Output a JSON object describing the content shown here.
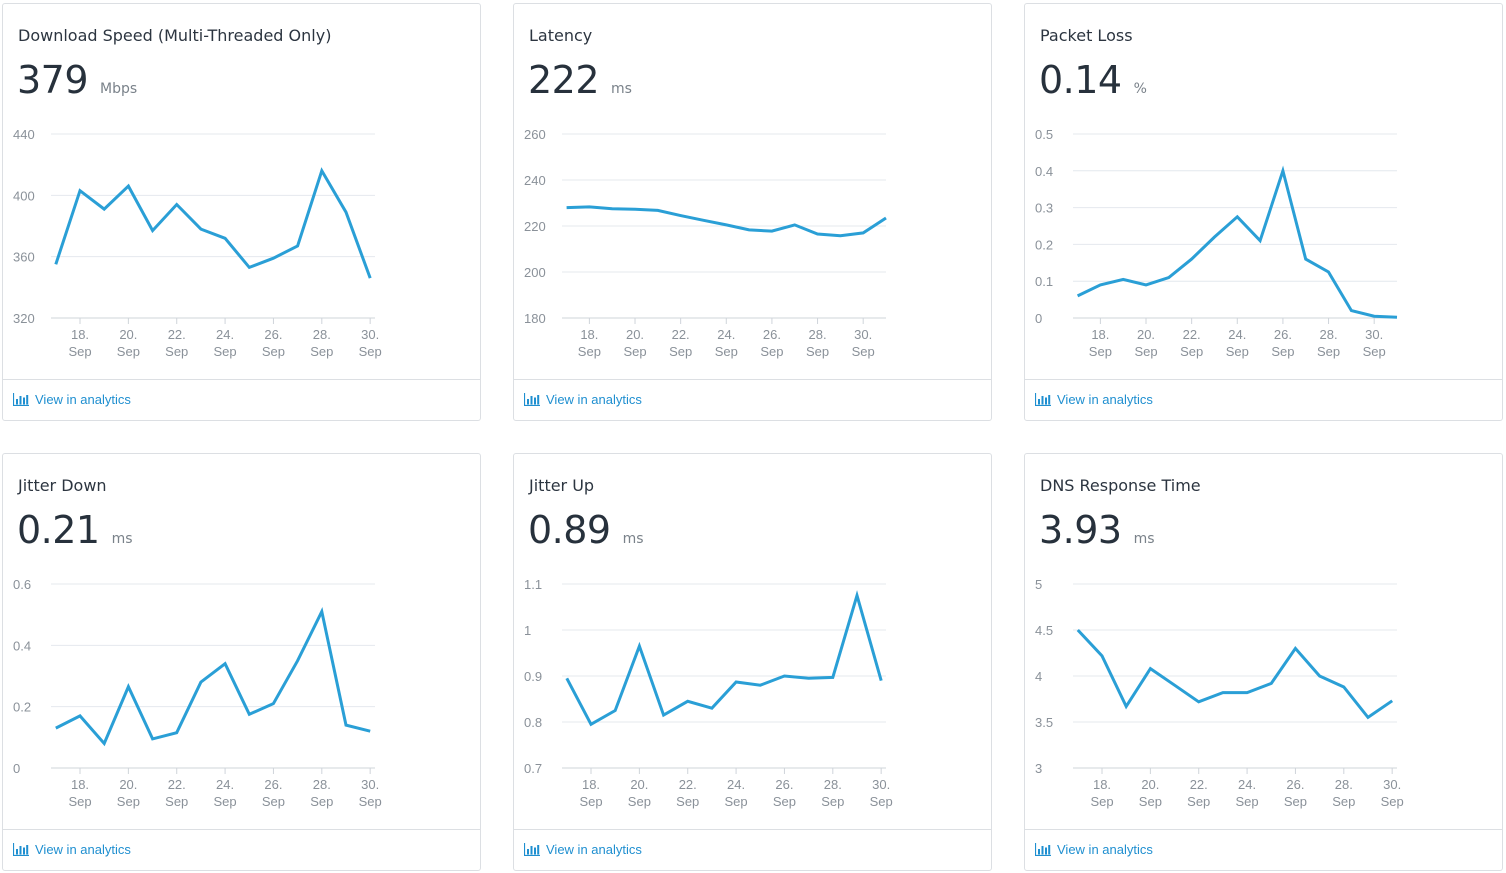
{
  "link_color": "#1f8fd0",
  "line_color": "#2a9fd6",
  "analytics_label": "View in analytics",
  "analytics_icon": "bar-chart-icon",
  "cards": [
    {
      "title": "Download Speed (Multi-Threaded Only)",
      "value": "379",
      "unit": "Mbps",
      "chart_data": {
        "type": "line",
        "x": [
          17,
          18,
          19,
          20,
          21,
          22,
          23,
          24,
          25,
          26,
          27,
          28,
          29,
          30
        ],
        "values": [
          355,
          403,
          391,
          406,
          377,
          394,
          378,
          372,
          353,
          359,
          367,
          416,
          389,
          346
        ],
        "ylim": [
          320,
          440
        ],
        "yticks": [
          "320",
          "360",
          "400",
          "440"
        ],
        "xtick_days": [
          18,
          20,
          22,
          24,
          26,
          28,
          30
        ],
        "xtick_labels": [
          "18.",
          "20.",
          "22.",
          "24.",
          "26.",
          "28.",
          "30."
        ],
        "xtick_month": "Sep",
        "grid": true
      }
    },
    {
      "title": "Latency",
      "value": "222",
      "unit": "ms",
      "chart_data": {
        "type": "line",
        "x": [
          17,
          18,
          19,
          20,
          21,
          22,
          23,
          24,
          25,
          26,
          27,
          28,
          29,
          30,
          31
        ],
        "values": [
          228,
          228.3,
          227.5,
          227.3,
          226.8,
          224.5,
          222.5,
          220.5,
          218.3,
          217.8,
          220.5,
          216.5,
          215.8,
          217,
          223.5
        ],
        "ylim": [
          180,
          260
        ],
        "yticks": [
          "180",
          "200",
          "220",
          "240",
          "260"
        ],
        "xtick_days": [
          18,
          20,
          22,
          24,
          26,
          28,
          30
        ],
        "xtick_labels": [
          "18.",
          "20.",
          "22.",
          "24.",
          "26.",
          "28.",
          "30."
        ],
        "xtick_month": "Sep",
        "grid": true
      }
    },
    {
      "title": "Packet Loss",
      "value": "0.14",
      "unit": "%",
      "chart_data": {
        "type": "line",
        "x": [
          17,
          18,
          19,
          20,
          21,
          22,
          23,
          24,
          25,
          26,
          27,
          28,
          29,
          30,
          31
        ],
        "values": [
          0.06,
          0.09,
          0.105,
          0.09,
          0.11,
          0.16,
          0.22,
          0.275,
          0.21,
          0.4,
          0.16,
          0.125,
          0.02,
          0.005,
          0.002
        ],
        "ylim": [
          0,
          0.5
        ],
        "yticks": [
          "0",
          "0.1",
          "0.2",
          "0.3",
          "0.4",
          "0.5"
        ],
        "xtick_days": [
          18,
          20,
          22,
          24,
          26,
          28,
          30
        ],
        "xtick_labels": [
          "18.",
          "20.",
          "22.",
          "24.",
          "26.",
          "28.",
          "30."
        ],
        "xtick_month": "Sep",
        "grid": true
      }
    },
    {
      "title": "Jitter Down",
      "value": "0.21",
      "unit": "ms",
      "chart_data": {
        "type": "line",
        "x": [
          17,
          18,
          19,
          20,
          21,
          22,
          23,
          24,
          25,
          26,
          27,
          28,
          29,
          30
        ],
        "values": [
          0.13,
          0.17,
          0.08,
          0.265,
          0.095,
          0.115,
          0.28,
          0.34,
          0.175,
          0.21,
          0.35,
          0.51,
          0.14,
          0.12
        ],
        "ylim": [
          0,
          0.6
        ],
        "yticks": [
          "0",
          "0.2",
          "0.4",
          "0.6"
        ],
        "xtick_days": [
          18,
          20,
          22,
          24,
          26,
          28,
          30
        ],
        "xtick_labels": [
          "18.",
          "20.",
          "22.",
          "24.",
          "26.",
          "28.",
          "30."
        ],
        "xtick_month": "Sep",
        "grid": true
      }
    },
    {
      "title": "Jitter Up",
      "value": "0.89",
      "unit": "ms",
      "chart_data": {
        "type": "line",
        "x": [
          17,
          18,
          19,
          20,
          21,
          22,
          23,
          24,
          25,
          26,
          27,
          28,
          29,
          30
        ],
        "values": [
          0.895,
          0.795,
          0.825,
          0.965,
          0.815,
          0.845,
          0.83,
          0.887,
          0.88,
          0.9,
          0.895,
          0.897,
          1.075,
          0.89
        ],
        "ylim": [
          0.7,
          1.1
        ],
        "yticks": [
          "0.7",
          "0.8",
          "0.9",
          "1",
          "1.1"
        ],
        "xtick_days": [
          18,
          20,
          22,
          24,
          26,
          28,
          30
        ],
        "xtick_labels": [
          "18.",
          "20.",
          "22.",
          "24.",
          "26.",
          "28.",
          "30."
        ],
        "xtick_month": "Sep",
        "grid": true
      }
    },
    {
      "title": "DNS Response Time",
      "value": "3.93",
      "unit": "ms",
      "chart_data": {
        "type": "line",
        "x": [
          17,
          18,
          19,
          20,
          21,
          22,
          23,
          24,
          25,
          26,
          27,
          28,
          29,
          30
        ],
        "values": [
          4.5,
          4.22,
          3.67,
          4.08,
          3.9,
          3.72,
          3.82,
          3.82,
          3.92,
          4.3,
          4.0,
          3.88,
          3.55,
          3.73
        ],
        "ylim": [
          3,
          5
        ],
        "yticks": [
          "3",
          "3.5",
          "4",
          "4.5",
          "5"
        ],
        "xtick_days": [
          18,
          20,
          22,
          24,
          26,
          28,
          30
        ],
        "xtick_labels": [
          "18.",
          "20.",
          "22.",
          "24.",
          "26.",
          "28.",
          "30."
        ],
        "xtick_month": "Sep",
        "grid": true
      }
    }
  ]
}
